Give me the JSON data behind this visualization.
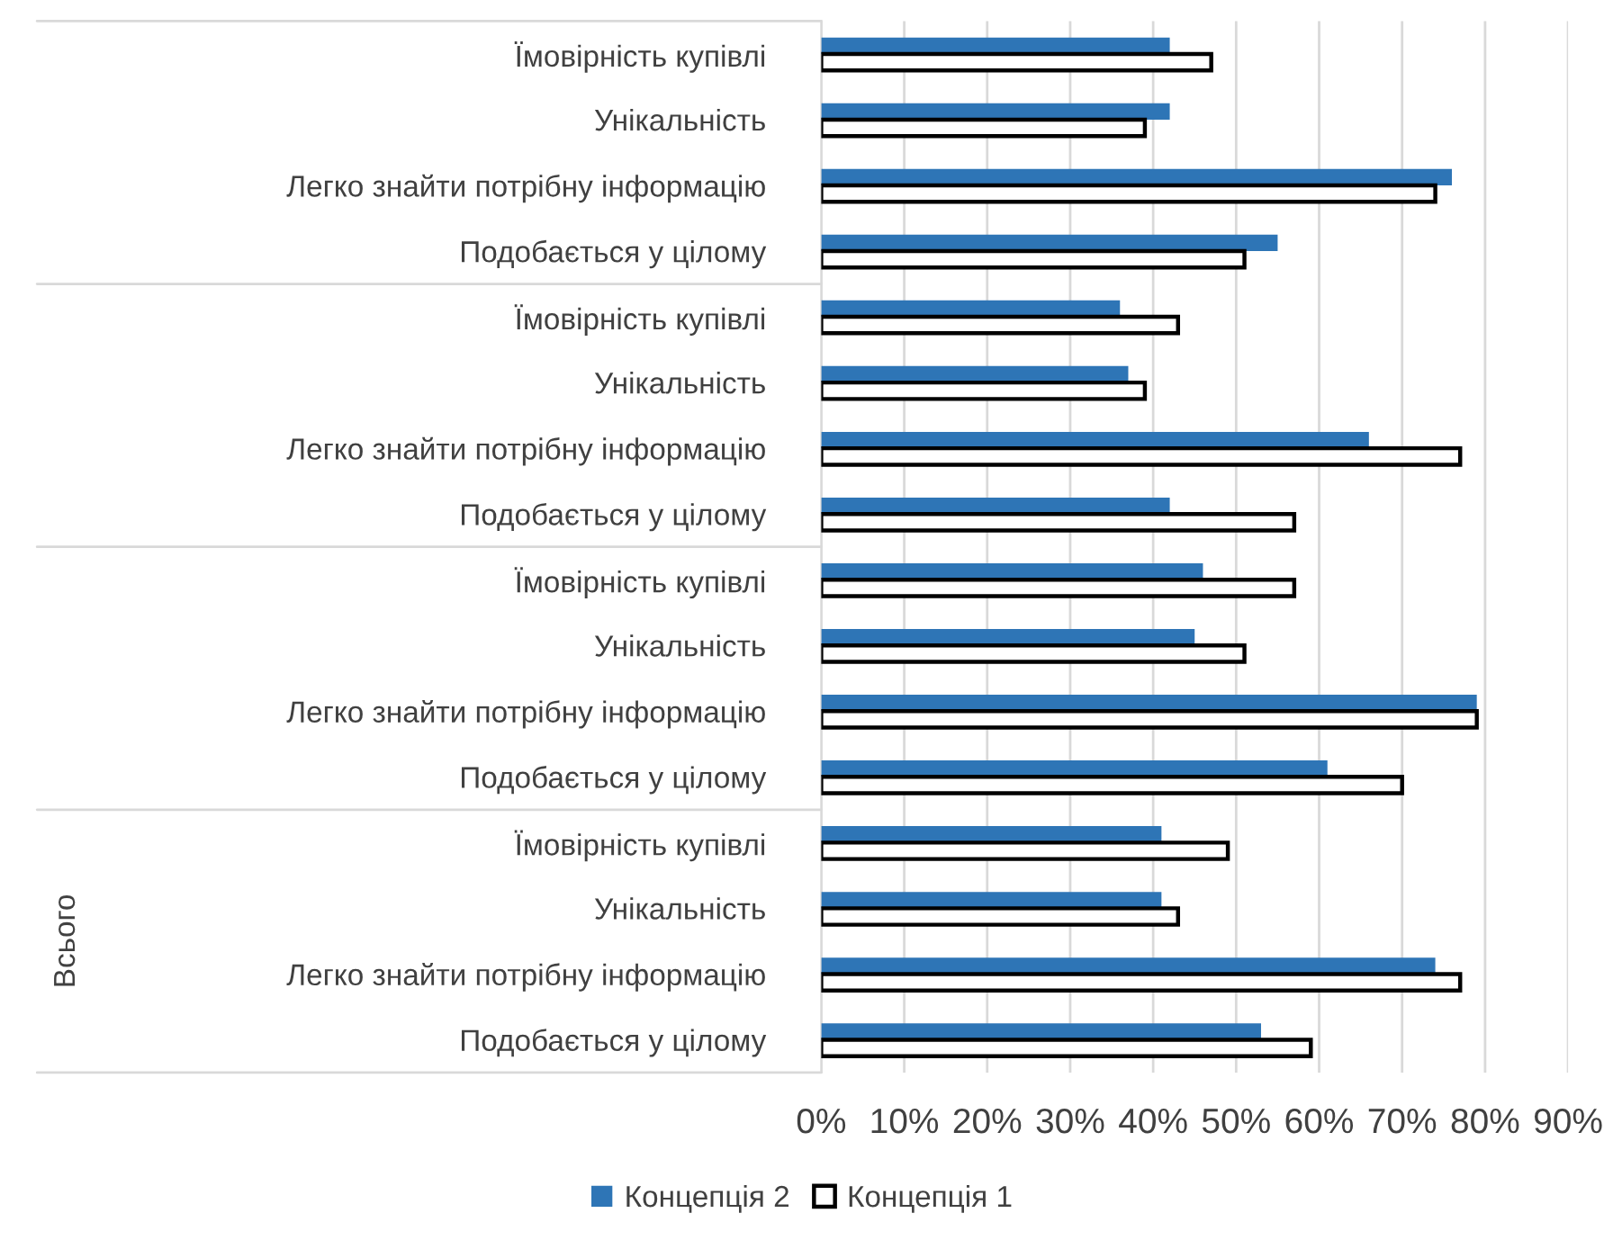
{
  "chart_data": {
    "type": "bar",
    "orientation": "horizontal",
    "categories": [
      "Їмовірність купівлі",
      "Унікальність",
      "Легко знайти потрібну інформацію",
      "Подобається у цілому",
      "Їмовірність купівлі",
      "Унікальність",
      "Легко знайти потрібну інформацію",
      "Подобається у цілому",
      "Їмовірність купівлі",
      "Унікальність",
      "Легко знайти потрібну інформацію",
      "Подобається у цілому",
      "Їмовірність купівлі",
      "Унікальність",
      "Легко знайти потрібну інформацію",
      "Подобається у цілому"
    ],
    "series": [
      {
        "name": "Концепція 2",
        "color": "#2e75b6",
        "values": [
          42,
          42,
          76,
          55,
          36,
          37,
          66,
          42,
          46,
          45,
          79,
          61,
          41,
          41,
          74,
          53
        ]
      },
      {
        "name": "Концепція 1",
        "color": "#ffffff",
        "values": [
          47,
          39,
          74,
          51,
          43,
          39,
          77,
          57,
          57,
          51,
          79,
          70,
          49,
          43,
          77,
          59
        ]
      }
    ],
    "xlim": [
      0,
      90
    ],
    "xticks": [
      {
        "value": 0,
        "label": "0%"
      },
      {
        "value": 10,
        "label": "10%"
      },
      {
        "value": 20,
        "label": "20%"
      },
      {
        "value": 30,
        "label": "30%"
      },
      {
        "value": 40,
        "label": "40%"
      },
      {
        "value": 50,
        "label": "50%"
      },
      {
        "value": 60,
        "label": "60%"
      },
      {
        "value": 70,
        "label": "70%"
      },
      {
        "value": 80,
        "label": "80%"
      },
      {
        "value": 90,
        "label": "90%"
      }
    ],
    "grid": "x",
    "legend": "bottom",
    "annotations": [
      "Всього"
    ]
  }
}
